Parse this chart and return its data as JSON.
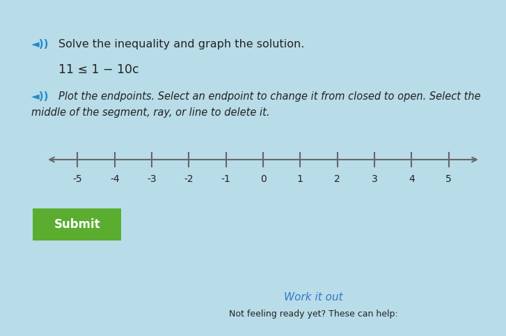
{
  "bg_color": "#b8dce8",
  "panel_color": "#cce5f0",
  "title_text": "Solve the inequality and graph the solution.",
  "inequality_text": "11 ≤ 1 − 10c",
  "instruction_line1": "Plot the endpoints. Select an endpoint to change it from closed to open. Select the",
  "instruction_line2": "middle of the segment, ray, or line to delete it.",
  "number_line_min": -5,
  "number_line_max": 5,
  "tick_labels": [
    -5,
    -4,
    -3,
    -2,
    -1,
    0,
    1,
    2,
    3,
    4,
    5
  ],
  "submit_text": "Submit",
  "submit_bg": "#5aad2e",
  "submit_text_color": "#ffffff",
  "bottom_link_text": "Work it out",
  "bottom_sub_text": "Not feeling ready yet? These can help:",
  "icon_color": "#2288cc",
  "text_color": "#222222",
  "line_color": "#666666"
}
